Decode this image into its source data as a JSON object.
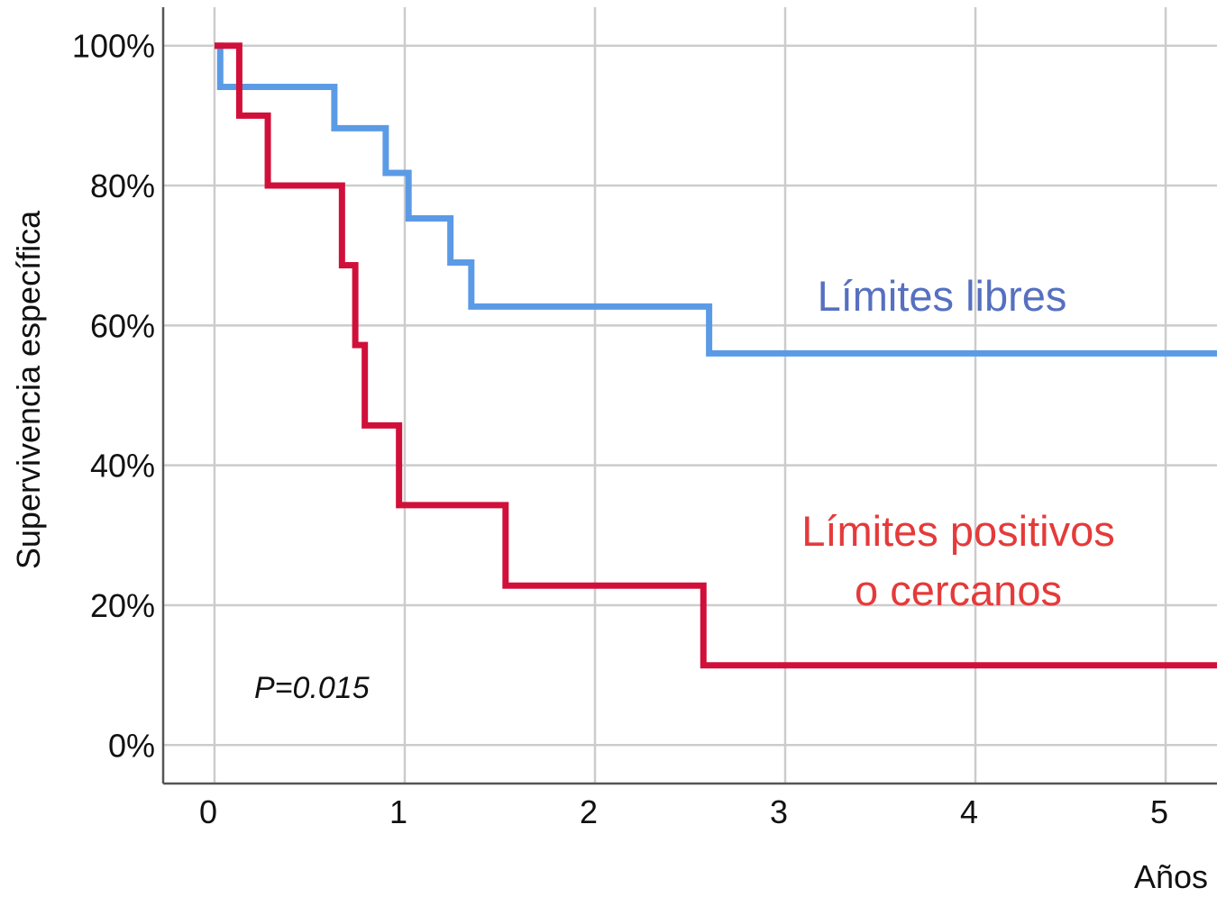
{
  "chart_data": {
    "type": "line",
    "subtype": "kaplan-meier step",
    "xlabel": "Años",
    "ylabel": "Supervivencia específica",
    "xlim": [
      -0.27,
      5.27
    ],
    "ylim": [
      -0.055,
      1.055
    ],
    "x_ticks": [
      "0",
      "1",
      "2",
      "3",
      "4",
      "5"
    ],
    "y_ticks": [
      "0%",
      "20%",
      "40%",
      "60%",
      "80%",
      "100%"
    ],
    "grid": true,
    "annotation": "P=0.015",
    "series": [
      {
        "name": "Límites libres",
        "color": "#5b9be6",
        "label_color": "#5670c0",
        "x": [
          0,
          0.03,
          0.63,
          0.9,
          1.02,
          1.24,
          1.35,
          2.6,
          5.27
        ],
        "y": [
          1.0,
          0.941,
          0.882,
          0.818,
          0.753,
          0.69,
          0.627,
          0.56,
          0.56
        ]
      },
      {
        "name": "Límites positivos\no cercanos",
        "label_lines": [
          "Límites positivos",
          "o cercanos"
        ],
        "color": "#d0103a",
        "label_color": "#e53a3a",
        "x": [
          0,
          0.13,
          0.28,
          0.67,
          0.74,
          0.79,
          0.97,
          1.53,
          2.57,
          5.27
        ],
        "y": [
          1.0,
          0.9,
          0.8,
          0.686,
          0.572,
          0.457,
          0.343,
          0.228,
          0.114,
          0.114
        ]
      }
    ]
  }
}
